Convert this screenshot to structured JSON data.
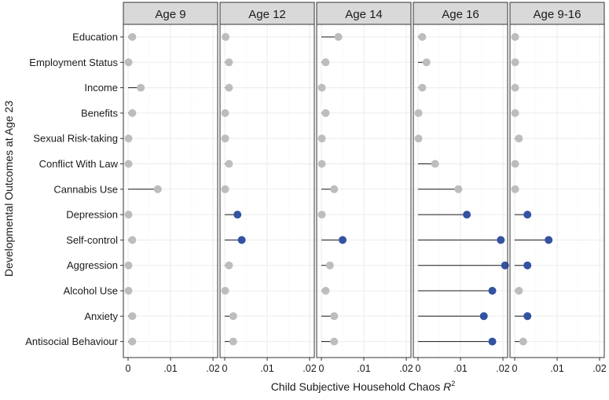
{
  "chart_data": {
    "type": "lollipop",
    "xlabel": "Child Subjective Household Chaos R²",
    "ylabel": "Developmental Outcomes at Age 23",
    "xlim": [
      0,
      0.02
    ],
    "x_ticks": [
      0,
      0.01,
      0.02
    ],
    "x_tick_labels": [
      "0",
      ".01",
      ".02"
    ],
    "grid": true,
    "colors": {
      "significant": "#3352a1",
      "nonsignificant": "#bdbdbd"
    },
    "categories": [
      "Education",
      "Employment Status",
      "Income",
      "Benefits",
      "Sexual Risk-taking",
      "Conflict With Law",
      "Cannabis Use",
      "Depression",
      "Self-control",
      "Aggression",
      "Alcohol Use",
      "Anxiety",
      "Antisocial Behaviour"
    ],
    "panels": [
      {
        "name": "Age 9",
        "values": [
          0.001,
          0.0001,
          0.003,
          0.001,
          0.0001,
          0.0001,
          0.007,
          0.0001,
          0.001,
          0.0001,
          0.0001,
          0.001,
          0.001
        ],
        "significant": [
          false,
          false,
          false,
          false,
          false,
          false,
          false,
          false,
          false,
          false,
          false,
          false,
          false
        ]
      },
      {
        "name": "Age 12",
        "values": [
          0.0002,
          0.001,
          0.001,
          0.0001,
          0.0001,
          0.001,
          0.0001,
          0.003,
          0.004,
          0.001,
          0.0001,
          0.002,
          0.002
        ],
        "significant": [
          false,
          false,
          false,
          false,
          false,
          false,
          false,
          true,
          true,
          false,
          false,
          false,
          false
        ]
      },
      {
        "name": "Age 14",
        "values": [
          0.004,
          0.001,
          0.0001,
          0.001,
          0.0001,
          0.0001,
          0.003,
          0.0001,
          0.005,
          0.002,
          0.001,
          0.003,
          0.003
        ],
        "significant": [
          false,
          false,
          false,
          false,
          false,
          false,
          false,
          false,
          true,
          false,
          false,
          false,
          false
        ]
      },
      {
        "name": "Age 16",
        "values": [
          0.001,
          0.002,
          0.001,
          0.0001,
          0.0001,
          0.004,
          0.0095,
          0.0115,
          0.0195,
          0.0205,
          0.0175,
          0.0155,
          0.0175
        ],
        "significant": [
          false,
          false,
          false,
          false,
          false,
          false,
          false,
          true,
          true,
          true,
          true,
          true,
          true
        ]
      },
      {
        "name": "Age 9-16",
        "values": [
          0.0001,
          0.0001,
          0.0001,
          0.0001,
          0.001,
          0.0001,
          0.0001,
          0.003,
          0.008,
          0.003,
          0.001,
          0.003,
          0.002
        ],
        "significant": [
          false,
          false,
          false,
          false,
          false,
          false,
          false,
          true,
          true,
          true,
          false,
          true,
          false
        ]
      }
    ]
  }
}
